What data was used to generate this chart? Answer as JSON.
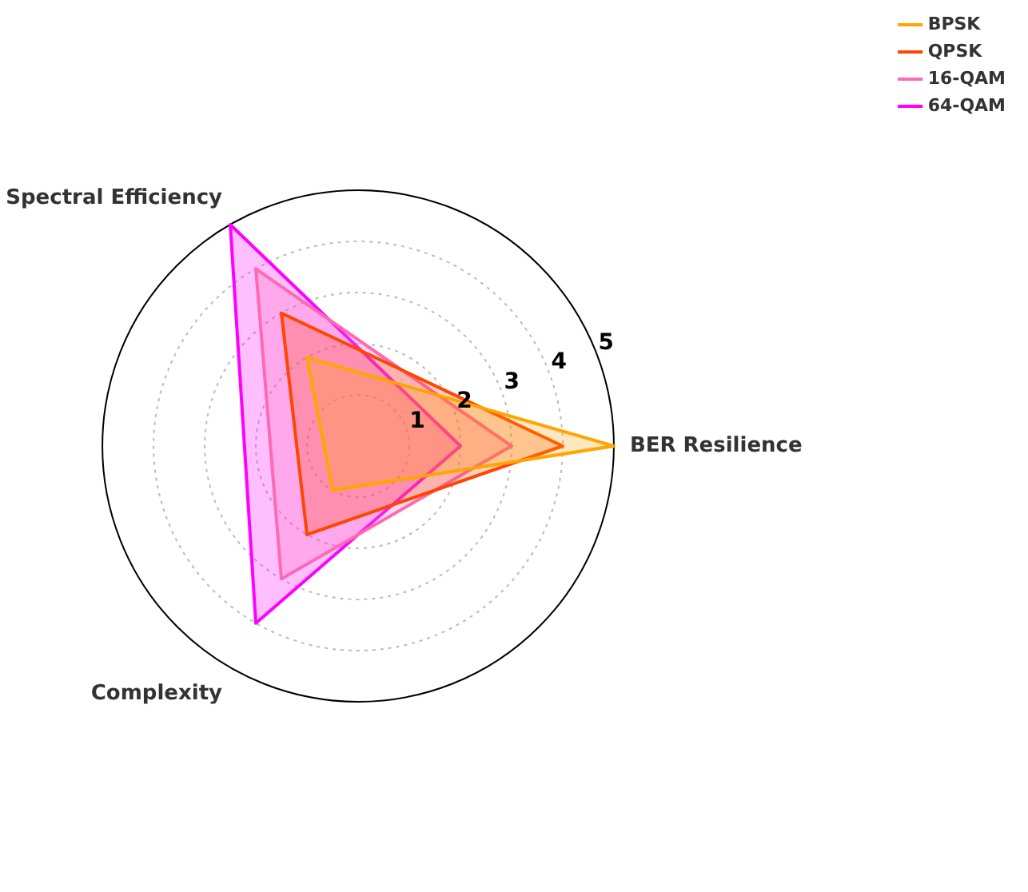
{
  "chart_data": {
    "type": "radar",
    "categories": [
      "BER Resilience",
      "Complexity",
      "Spectral Efficiency"
    ],
    "series": [
      {
        "name": "BPSK",
        "color": "#ffa500",
        "values": [
          5,
          1,
          2
        ]
      },
      {
        "name": "QPSK",
        "color": "#ff4500",
        "values": [
          4,
          2,
          3
        ]
      },
      {
        "name": "16-QAM",
        "color": "#ff69b4",
        "values": [
          3,
          3,
          4
        ]
      },
      {
        "name": "64-QAM",
        "color": "#ff00ff",
        "values": [
          2,
          4,
          5
        ]
      }
    ],
    "ylim": [
      0,
      5
    ],
    "yticks": [
      1,
      2,
      3,
      4,
      5
    ],
    "grid": true,
    "legend": "top right",
    "marker": "none",
    "line_style": "solid"
  }
}
